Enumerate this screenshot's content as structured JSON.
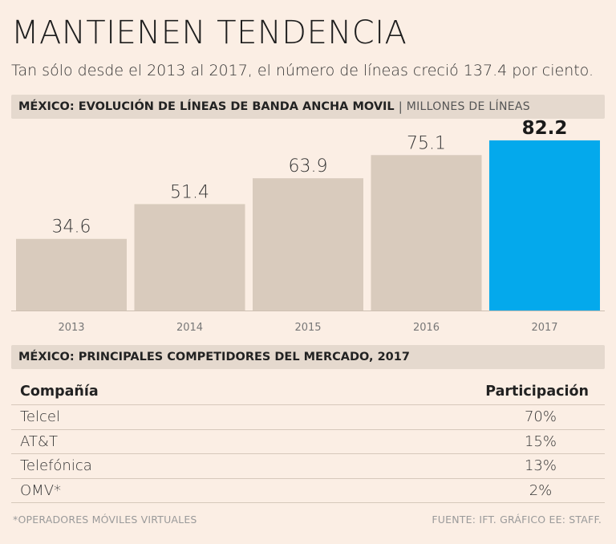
{
  "header": {
    "title": "MANTIENEN TENDENCIA",
    "subtitle": "Tan sólo desde el 2013 al 2017, el número de líneas creció 137.4 por ciento."
  },
  "chart_section": {
    "title": "MÉXICO: EVOLUCIÓN DE LÍNEAS DE BANDA ANCHA MOVIL",
    "unit": "MILLONES DE LÍNEAS"
  },
  "chart_data": {
    "type": "bar",
    "title": "MÉXICO: EVOLUCIÓN DE LÍNEAS DE BANDA ANCHA MOVIL",
    "ylabel": "MILLONES DE LÍNEAS",
    "xlabel": "",
    "categories": [
      "2013",
      "2014",
      "2015",
      "2016",
      "2017"
    ],
    "values": [
      34.6,
      51.4,
      63.9,
      75.1,
      82.2
    ],
    "labels": [
      "34.6",
      "51.4",
      "63.9",
      "75.1",
      "82.2"
    ],
    "highlight_index": 4,
    "ylim": [
      0,
      88
    ],
    "colors": {
      "default": "#d9cbbd",
      "highlight": "#04a9ec"
    }
  },
  "competitors": {
    "title": "MÉXICO: PRINCIPALES COMPETIDORES DEL MERCADO, 2017",
    "headers": {
      "company": "Compañía",
      "share": "Participación"
    },
    "rows": [
      {
        "company": "Telcel",
        "share": "70%"
      },
      {
        "company": "AT&T",
        "share": "15%"
      },
      {
        "company": "Telefónica",
        "share": "13%"
      },
      {
        "company": "OMV*",
        "share": "2%"
      }
    ]
  },
  "footer": {
    "note": "*OPERADORES MÓVILES VIRTUALES",
    "source": "FUENTE: IFT.  GRÁFICO EE: STAFF."
  }
}
